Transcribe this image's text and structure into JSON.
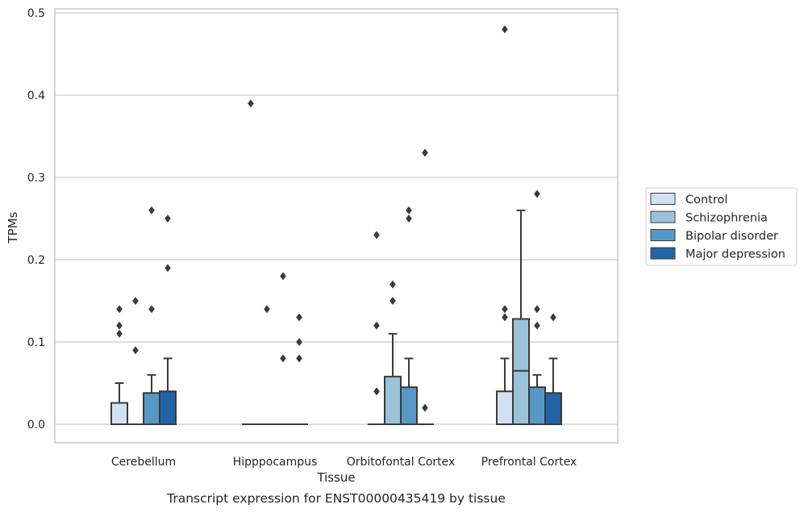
{
  "chart_data": {
    "type": "box",
    "caption": "Transcript expression for ENST00000435419 by tissue",
    "xlabel": "Tissue",
    "ylabel": "TPMs",
    "ylim": [
      -0.023,
      0.505
    ],
    "yticks": [
      0.0,
      0.1,
      0.2,
      0.3,
      0.4,
      0.5
    ],
    "ytick_labels": [
      "0.0",
      "0.1",
      "0.2",
      "0.3",
      "0.4",
      "0.5"
    ],
    "grid": "horizontal",
    "legend_position": "right",
    "categories": [
      "Cerebellum",
      "Hipppocampus",
      "Orbitofontal Cortex",
      "Prefrontal Cortex"
    ],
    "series": [
      {
        "name": "Control",
        "color": "#d1e1f0",
        "boxes": [
          {
            "q1": 0.0,
            "median": 0.0,
            "q3": 0.026,
            "whisker_low": 0.0,
            "whisker_high": 0.05,
            "outliers": [
              0.11,
              0.12,
              0.14
            ]
          },
          {
            "q1": 0.0,
            "median": 0.0,
            "q3": 0.0,
            "whisker_low": 0.0,
            "whisker_high": 0.0,
            "outliers": [
              0.39
            ]
          },
          {
            "q1": 0.0,
            "median": 0.0,
            "q3": 0.0,
            "whisker_low": 0.0,
            "whisker_high": 0.0,
            "outliers": [
              0.04,
              0.12,
              0.23
            ]
          },
          {
            "q1": 0.0,
            "median": 0.0,
            "q3": 0.04,
            "whisker_low": 0.0,
            "whisker_high": 0.08,
            "outliers": [
              0.13,
              0.14,
              0.48
            ]
          }
        ]
      },
      {
        "name": "Schizophrenia",
        "color": "#9ac3db",
        "boxes": [
          {
            "q1": 0.0,
            "median": 0.0,
            "q3": 0.0,
            "whisker_low": 0.0,
            "whisker_high": 0.0,
            "outliers": [
              0.09,
              0.15
            ]
          },
          {
            "q1": 0.0,
            "median": 0.0,
            "q3": 0.0,
            "whisker_low": 0.0,
            "whisker_high": 0.0,
            "outliers": [
              0.14
            ]
          },
          {
            "q1": 0.0,
            "median": 0.0,
            "q3": 0.058,
            "whisker_low": 0.0,
            "whisker_high": 0.11,
            "outliers": [
              0.15,
              0.17
            ]
          },
          {
            "q1": 0.0,
            "median": 0.065,
            "q3": 0.128,
            "whisker_low": 0.0,
            "whisker_high": 0.26,
            "outliers": []
          }
        ]
      },
      {
        "name": "Bipolar disorder",
        "color": "#5699c6",
        "boxes": [
          {
            "q1": 0.0,
            "median": 0.0,
            "q3": 0.038,
            "whisker_low": 0.0,
            "whisker_high": 0.06,
            "outliers": [
              0.14,
              0.26
            ]
          },
          {
            "q1": 0.0,
            "median": 0.0,
            "q3": 0.0,
            "whisker_low": 0.0,
            "whisker_high": 0.0,
            "outliers": [
              0.08,
              0.18
            ]
          },
          {
            "q1": 0.0,
            "median": 0.0,
            "q3": 0.045,
            "whisker_low": 0.0,
            "whisker_high": 0.08,
            "outliers": [
              0.25,
              0.26
            ]
          },
          {
            "q1": 0.0,
            "median": 0.0,
            "q3": 0.045,
            "whisker_low": 0.0,
            "whisker_high": 0.06,
            "outliers": [
              0.12,
              0.14,
              0.28
            ]
          }
        ]
      },
      {
        "name": "Major depression",
        "color": "#2264a6",
        "boxes": [
          {
            "q1": 0.0,
            "median": 0.0,
            "q3": 0.04,
            "whisker_low": 0.0,
            "whisker_high": 0.08,
            "outliers": [
              0.19,
              0.25
            ]
          },
          {
            "q1": 0.0,
            "median": 0.0,
            "q3": 0.0,
            "whisker_low": 0.0,
            "whisker_high": 0.0,
            "outliers": [
              0.08,
              0.1,
              0.13
            ]
          },
          {
            "q1": 0.0,
            "median": 0.0,
            "q3": 0.0,
            "whisker_low": 0.0,
            "whisker_high": 0.0,
            "outliers": [
              0.02,
              0.33
            ]
          },
          {
            "q1": 0.0,
            "median": 0.0,
            "q3": 0.038,
            "whisker_low": 0.0,
            "whisker_high": 0.08,
            "outliers": [
              0.13
            ]
          }
        ]
      }
    ]
  }
}
